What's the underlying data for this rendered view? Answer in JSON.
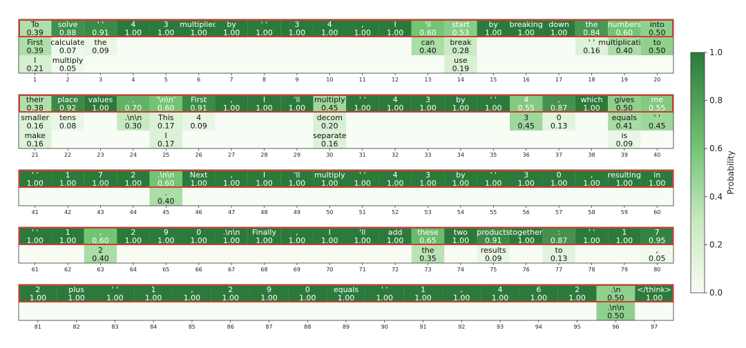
{
  "chart_data": {
    "type": "heatmap",
    "title": "",
    "rows": [
      {
        "start": 1,
        "columns": [
          [
            [
              "To",
              "0.39"
            ],
            [
              "First",
              "0.39"
            ],
            [
              "I",
              "0.21"
            ]
          ],
          [
            [
              "solve",
              "0.88"
            ],
            [
              "calculate",
              "0.07"
            ],
            [
              "multiply",
              "0.05"
            ]
          ],
          [
            [
              "' '",
              "0.91"
            ],
            [
              "the",
              "0.09"
            ]
          ],
          [
            [
              "4",
              "1.00"
            ]
          ],
          [
            [
              "3",
              "1.00"
            ]
          ],
          [
            [
              "multiplied",
              "1.00"
            ]
          ],
          [
            [
              "by",
              "1.00"
            ]
          ],
          [
            [
              "' '",
              "1.00"
            ]
          ],
          [
            [
              "3",
              "1.00"
            ]
          ],
          [
            [
              "4",
              "1.00"
            ]
          ],
          [
            [
              ",",
              "1.00"
            ]
          ],
          [
            [
              "I",
              "1.00"
            ]
          ],
          [
            [
              "'ll",
              "0.60"
            ],
            [
              "can",
              "0.40"
            ]
          ],
          [
            [
              "start",
              "0.53"
            ],
            [
              "break",
              "0.28"
            ],
            [
              "use",
              "0.19"
            ]
          ],
          [
            [
              "by",
              "1.00"
            ]
          ],
          [
            [
              "breaking",
              "1.00"
            ]
          ],
          [
            [
              "down",
              "1.00"
            ]
          ],
          [
            [
              "the",
              "0.84"
            ],
            [
              "' '",
              "0.16"
            ]
          ],
          [
            [
              "numbers",
              "0.60"
            ],
            [
              "multiplication",
              "0.40"
            ]
          ],
          [
            [
              "into",
              "0.50"
            ],
            [
              "to",
              "0.50"
            ]
          ]
        ]
      },
      {
        "start": 21,
        "columns": [
          [
            [
              "their",
              "0.38"
            ],
            [
              "smaller",
              "0.16"
            ],
            [
              "make",
              "0.16"
            ]
          ],
          [
            [
              "place",
              "0.92"
            ],
            [
              "tens",
              "0.08"
            ]
          ],
          [
            [
              "values",
              "1.00"
            ]
          ],
          [
            [
              ".",
              "0.70"
            ],
            [
              ".\\n\\n",
              "0.30"
            ]
          ],
          [
            [
              "'\\n\\n'",
              "0.60"
            ],
            [
              "This",
              "0.17"
            ],
            [
              "I",
              "0.17"
            ]
          ],
          [
            [
              "First",
              "0.91"
            ],
            [
              "4",
              "0.09"
            ]
          ],
          [
            [
              ",",
              "1.00"
            ]
          ],
          [
            [
              "I",
              "1.00"
            ]
          ],
          [
            [
              "'ll",
              "1.00"
            ]
          ],
          [
            [
              "multiply",
              "0.45"
            ],
            [
              "decom",
              "0.20"
            ],
            [
              "separate",
              "0.16"
            ]
          ],
          [
            [
              "' '",
              "1.00"
            ]
          ],
          [
            [
              "4",
              "1.00"
            ]
          ],
          [
            [
              "3",
              "1.00"
            ]
          ],
          [
            [
              "by",
              "1.00"
            ]
          ],
          [
            [
              "' '",
              "1.00"
            ]
          ],
          [
            [
              "4",
              "0.55"
            ],
            [
              "3",
              "0.45"
            ]
          ],
          [
            [
              ",",
              "0.87"
            ],
            [
              "0",
              "0.13"
            ]
          ],
          [
            [
              "which",
              "1.00"
            ]
          ],
          [
            [
              "gives",
              "0.50"
            ],
            [
              "equals",
              "0.41"
            ],
            [
              "is",
              "0.09"
            ]
          ],
          [
            [
              "me",
              "0.55"
            ],
            [
              "' '",
              "0.45"
            ]
          ]
        ]
      },
      {
        "start": 41,
        "columns": [
          [
            [
              "' '",
              "1.00"
            ]
          ],
          [
            [
              "1",
              "1.00"
            ]
          ],
          [
            [
              "7",
              "1.00"
            ]
          ],
          [
            [
              "2",
              "1.00"
            ]
          ],
          [
            [
              ".\\n\\n",
              "0.60"
            ],
            [
              ".",
              "0.40"
            ]
          ],
          [
            [
              "Next",
              "1.00"
            ]
          ],
          [
            [
              ",",
              "1.00"
            ]
          ],
          [
            [
              "I",
              "1.00"
            ]
          ],
          [
            [
              "'ll",
              "1.00"
            ]
          ],
          [
            [
              "multiply",
              "1.00"
            ]
          ],
          [
            [
              "' '",
              "1.00"
            ]
          ],
          [
            [
              "4",
              "1.00"
            ]
          ],
          [
            [
              "3",
              "1.00"
            ]
          ],
          [
            [
              "by",
              "1.00"
            ]
          ],
          [
            [
              "' '",
              "1.00"
            ]
          ],
          [
            [
              "3",
              "1.00"
            ]
          ],
          [
            [
              "0",
              "1.00"
            ]
          ],
          [
            [
              ",",
              "1.00"
            ]
          ],
          [
            [
              "resulting",
              "1.00"
            ]
          ],
          [
            [
              "in",
              "1.00"
            ]
          ]
        ]
      },
      {
        "start": 61,
        "columns": [
          [
            [
              "' '",
              "1.00"
            ]
          ],
          [
            [
              "1",
              "1.00"
            ]
          ],
          [
            [
              ",",
              "0.60"
            ],
            [
              "2",
              "0.40"
            ]
          ],
          [
            [
              "2",
              "1.00"
            ]
          ],
          [
            [
              "9",
              "1.00"
            ]
          ],
          [
            [
              "0",
              "1.00"
            ]
          ],
          [
            [
              ".\\n\\n",
              "1.00"
            ]
          ],
          [
            [
              "Finally",
              "1.00"
            ]
          ],
          [
            [
              ",",
              "1.00"
            ]
          ],
          [
            [
              "I",
              "1.00"
            ]
          ],
          [
            [
              "'ll",
              "1.00"
            ]
          ],
          [
            [
              "add",
              "1.00"
            ]
          ],
          [
            [
              "these",
              "0.65"
            ],
            [
              "the",
              "0.35"
            ]
          ],
          [
            [
              "two",
              "1.00"
            ]
          ],
          [
            [
              "products",
              "0.91"
            ],
            [
              "results",
              "0.09"
            ]
          ],
          [
            [
              "together",
              "1.00"
            ]
          ],
          [
            [
              ":",
              "0.87"
            ],
            [
              "to",
              "0.13"
            ]
          ],
          [
            [
              "' '",
              "1.00"
            ]
          ],
          [
            [
              "1",
              "1.00"
            ]
          ],
          [
            [
              "7",
              "0.95"
            ],
            [
              ",",
              "0.05"
            ]
          ]
        ]
      },
      {
        "start": 81,
        "columns": [
          [
            [
              "2",
              "1.00"
            ]
          ],
          [
            [
              "plus",
              "1.00"
            ]
          ],
          [
            [
              "' '",
              "1.00"
            ]
          ],
          [
            [
              "1",
              "1.00"
            ]
          ],
          [
            [
              ",",
              "1.00"
            ]
          ],
          [
            [
              "2",
              "1.00"
            ]
          ],
          [
            [
              "9",
              "1.00"
            ]
          ],
          [
            [
              "0",
              "1.00"
            ]
          ],
          [
            [
              "equals",
              "1.00"
            ]
          ],
          [
            [
              "' '",
              "1.00"
            ]
          ],
          [
            [
              "1",
              "1.00"
            ]
          ],
          [
            [
              ",",
              "1.00"
            ]
          ],
          [
            [
              "4",
              "1.00"
            ]
          ],
          [
            [
              "6",
              "1.00"
            ]
          ],
          [
            [
              "2",
              "1.00"
            ]
          ],
          [
            [
              ".\\n",
              "0.50"
            ],
            [
              ".\\n\\n",
              "0.50"
            ]
          ],
          [
            [
              "</think>",
              "1.00"
            ]
          ]
        ]
      }
    ],
    "colorbar": {
      "label": "Probability",
      "range": [
        0,
        1
      ],
      "ticks": [
        "0.0",
        "0.2",
        "0.4",
        "0.6",
        "0.8",
        "1.0"
      ]
    },
    "colors": {
      "low": "#f7fcf5",
      "high": "#2b7a3b",
      "highlight_border": "#d43a2a"
    }
  }
}
